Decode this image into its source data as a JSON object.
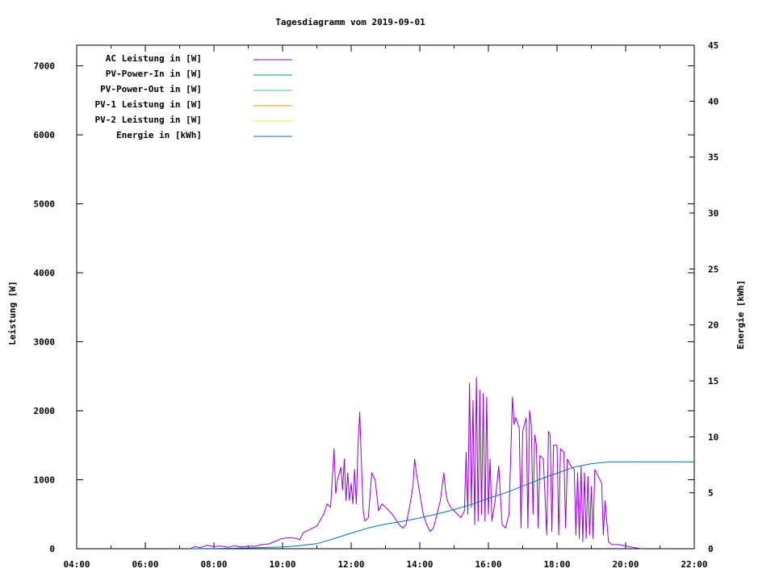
{
  "chart_data": {
    "type": "line",
    "title": "Tagesdiagramm vom 2019-09-01",
    "xlabel": "",
    "ylabel": "Leistung [W]",
    "y2label": "Energie [kWh]",
    "xlim": [
      "04:00",
      "22:00"
    ],
    "xlim_hours": [
      4,
      22
    ],
    "ylim": [
      0,
      7300
    ],
    "y2lim": [
      0,
      45
    ],
    "x_ticks": [
      "04:00",
      "06:00",
      "08:00",
      "10:00",
      "12:00",
      "14:00",
      "16:00",
      "18:00",
      "20:00",
      "22:00"
    ],
    "y_ticks": [
      "0",
      "1000",
      "2000",
      "3000",
      "4000",
      "5000",
      "6000",
      "7000"
    ],
    "y2_ticks": [
      "0",
      "5",
      "10",
      "15",
      "20",
      "25",
      "30",
      "35",
      "40",
      "45"
    ],
    "grid": false,
    "legend_position": "top-left",
    "legend": [
      {
        "name": "AC Leistung in [W]",
        "color": "#9400d3"
      },
      {
        "name": "PV-Power-In in [W]",
        "color": "#009e73"
      },
      {
        "name": "PV-Power-Out in [W]",
        "color": "#56b4e9"
      },
      {
        "name": "PV-1 Leistung in [W]",
        "color": "#e69f00"
      },
      {
        "name": "PV-2 Leistung in [W]",
        "color": "#f0e442"
      },
      {
        "name": "Energie in [kWh]",
        "color": "#0072b2"
      }
    ],
    "series": [
      {
        "name": "AC Leistung in [W]",
        "axis": "left",
        "color": "#9400d3",
        "points": [
          [
            7.3,
            0
          ],
          [
            7.45,
            30
          ],
          [
            7.6,
            15
          ],
          [
            7.8,
            50
          ],
          [
            8.0,
            30
          ],
          [
            8.2,
            40
          ],
          [
            8.4,
            20
          ],
          [
            8.6,
            45
          ],
          [
            8.8,
            25
          ],
          [
            9.0,
            40
          ],
          [
            9.2,
            35
          ],
          [
            9.4,
            60
          ],
          [
            9.6,
            70
          ],
          [
            9.8,
            110
          ],
          [
            10.0,
            150
          ],
          [
            10.2,
            160
          ],
          [
            10.4,
            150
          ],
          [
            10.5,
            130
          ],
          [
            10.6,
            230
          ],
          [
            10.8,
            280
          ],
          [
            11.0,
            330
          ],
          [
            11.2,
            500
          ],
          [
            11.3,
            650
          ],
          [
            11.4,
            600
          ],
          [
            11.5,
            1450
          ],
          [
            11.55,
            800
          ],
          [
            11.6,
            1000
          ],
          [
            11.7,
            1180
          ],
          [
            11.75,
            850
          ],
          [
            11.8,
            1300
          ],
          [
            11.85,
            700
          ],
          [
            11.9,
            1100
          ],
          [
            11.95,
            700
          ],
          [
            12.0,
            950
          ],
          [
            12.05,
            650
          ],
          [
            12.1,
            1150
          ],
          [
            12.15,
            650
          ],
          [
            12.2,
            1500
          ],
          [
            12.25,
            1980
          ],
          [
            12.3,
            1200
          ],
          [
            12.35,
            550
          ],
          [
            12.4,
            400
          ],
          [
            12.5,
            450
          ],
          [
            12.6,
            1100
          ],
          [
            12.7,
            1000
          ],
          [
            12.8,
            550
          ],
          [
            12.9,
            650
          ],
          [
            13.0,
            600
          ],
          [
            13.2,
            500
          ],
          [
            13.4,
            350
          ],
          [
            13.5,
            300
          ],
          [
            13.6,
            350
          ],
          [
            13.7,
            600
          ],
          [
            13.8,
            900
          ],
          [
            13.85,
            1300
          ],
          [
            13.9,
            1100
          ],
          [
            14.0,
            800
          ],
          [
            14.1,
            500
          ],
          [
            14.2,
            350
          ],
          [
            14.3,
            250
          ],
          [
            14.4,
            300
          ],
          [
            14.5,
            500
          ],
          [
            14.6,
            700
          ],
          [
            14.7,
            1100
          ],
          [
            14.75,
            850
          ],
          [
            14.8,
            700
          ],
          [
            14.9,
            600
          ],
          [
            15.0,
            550
          ],
          [
            15.1,
            500
          ],
          [
            15.2,
            450
          ],
          [
            15.3,
            550
          ],
          [
            15.35,
            1400
          ],
          [
            15.4,
            500
          ],
          [
            15.45,
            2400
          ],
          [
            15.5,
            600
          ],
          [
            15.55,
            2150
          ],
          [
            15.6,
            350
          ],
          [
            15.65,
            2480
          ],
          [
            15.7,
            400
          ],
          [
            15.75,
            2300
          ],
          [
            15.8,
            500
          ],
          [
            15.85,
            2250
          ],
          [
            15.9,
            400
          ],
          [
            15.95,
            2200
          ],
          [
            16.0,
            500
          ],
          [
            16.05,
            1300
          ],
          [
            16.1,
            400
          ],
          [
            16.2,
            700
          ],
          [
            16.3,
            1200
          ],
          [
            16.4,
            350
          ],
          [
            16.5,
            300
          ],
          [
            16.6,
            500
          ],
          [
            16.7,
            2200
          ],
          [
            16.75,
            1800
          ],
          [
            16.8,
            1900
          ],
          [
            16.9,
            1750
          ],
          [
            16.95,
            300
          ],
          [
            17.0,
            1700
          ],
          [
            17.1,
            1900
          ],
          [
            17.15,
            300
          ],
          [
            17.2,
            2000
          ],
          [
            17.25,
            1800
          ],
          [
            17.3,
            500
          ],
          [
            17.35,
            1650
          ],
          [
            17.4,
            1500
          ],
          [
            17.45,
            300
          ],
          [
            17.5,
            1350
          ],
          [
            17.6,
            1300
          ],
          [
            17.7,
            200
          ],
          [
            17.75,
            1700
          ],
          [
            17.8,
            1650
          ],
          [
            17.85,
            250
          ],
          [
            17.9,
            1500
          ],
          [
            18.0,
            1500
          ],
          [
            18.05,
            200
          ],
          [
            18.1,
            1450
          ],
          [
            18.2,
            1400
          ],
          [
            18.25,
            300
          ],
          [
            18.3,
            1300
          ],
          [
            18.4,
            1200
          ],
          [
            18.5,
            1150
          ],
          [
            18.55,
            200
          ],
          [
            18.6,
            1100
          ],
          [
            18.65,
            150
          ],
          [
            18.7,
            1200
          ],
          [
            18.75,
            100
          ],
          [
            18.8,
            1100
          ],
          [
            18.85,
            150
          ],
          [
            18.9,
            1050
          ],
          [
            18.95,
            200
          ],
          [
            19.0,
            900
          ],
          [
            19.05,
            150
          ],
          [
            19.1,
            1150
          ],
          [
            19.2,
            1050
          ],
          [
            19.3,
            950
          ],
          [
            19.35,
            200
          ],
          [
            19.4,
            700
          ],
          [
            19.5,
            100
          ],
          [
            19.6,
            60
          ],
          [
            19.8,
            60
          ],
          [
            20.0,
            40
          ],
          [
            20.2,
            20
          ],
          [
            20.4,
            5
          ],
          [
            20.5,
            0
          ]
        ]
      },
      {
        "name": "PV-Power-In in [W]",
        "axis": "left",
        "color": "#009e73",
        "points": []
      },
      {
        "name": "PV-Power-Out in [W]",
        "axis": "left",
        "color": "#56b4e9",
        "points": []
      },
      {
        "name": "PV-1 Leistung in [W]",
        "axis": "left",
        "color": "#e69f00",
        "points": []
      },
      {
        "name": "PV-2 Leistung in [W]",
        "axis": "left",
        "color": "#f0e442",
        "points": []
      },
      {
        "name": "Energie in [kWh]",
        "axis": "right",
        "color": "#0072b2",
        "points": [
          [
            7.3,
            0
          ],
          [
            8.0,
            0.02
          ],
          [
            9.0,
            0.07
          ],
          [
            10.0,
            0.15
          ],
          [
            10.5,
            0.28
          ],
          [
            11.0,
            0.45
          ],
          [
            11.5,
            0.9
          ],
          [
            12.0,
            1.4
          ],
          [
            12.5,
            1.85
          ],
          [
            13.0,
            2.2
          ],
          [
            13.5,
            2.45
          ],
          [
            14.0,
            2.75
          ],
          [
            14.5,
            3.1
          ],
          [
            15.0,
            3.5
          ],
          [
            15.5,
            3.95
          ],
          [
            16.0,
            4.5
          ],
          [
            16.5,
            5.0
          ],
          [
            17.0,
            5.6
          ],
          [
            17.5,
            6.2
          ],
          [
            18.0,
            6.75
          ],
          [
            18.5,
            7.3
          ],
          [
            19.0,
            7.6
          ],
          [
            19.5,
            7.75
          ],
          [
            20.0,
            7.76
          ],
          [
            20.5,
            7.76
          ],
          [
            22.0,
            7.76
          ]
        ]
      }
    ]
  }
}
